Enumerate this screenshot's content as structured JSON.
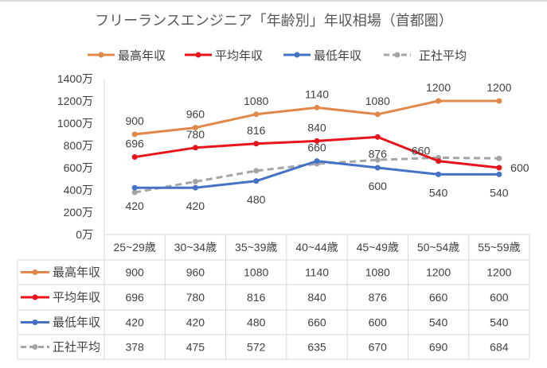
{
  "chart_data": {
    "type": "line",
    "title": "フリーランスエンジニア「年齢別」年収相場（首都圏）",
    "categories": [
      "25~29歳",
      "30~34歳",
      "35~39歳",
      "40~44歳",
      "45~49歳",
      "50~54歳",
      "55~59歳"
    ],
    "yticks": [
      "0万",
      "200万",
      "400万",
      "600万",
      "800万",
      "1000万",
      "1200万",
      "1400万"
    ],
    "ylim": [
      0,
      1400
    ],
    "grid": false,
    "legend": "top",
    "data_table": true,
    "series": [
      {
        "name": "最高年収",
        "color": "#e0884a",
        "dashed": false,
        "labels": true,
        "values": [
          900,
          960,
          1080,
          1140,
          1080,
          1200,
          1200
        ]
      },
      {
        "name": "平均年収",
        "color": "#e8141c",
        "dashed": false,
        "labels": true,
        "values": [
          696,
          780,
          816,
          840,
          876,
          660,
          600
        ]
      },
      {
        "name": "最低年収",
        "color": "#4472c4",
        "dashed": false,
        "labels": true,
        "values": [
          420,
          420,
          480,
          660,
          600,
          540,
          540
        ]
      },
      {
        "name": "正社平均",
        "color": "#a5a5a5",
        "dashed": true,
        "labels": false,
        "values": [
          378,
          475,
          572,
          635,
          670,
          690,
          684
        ]
      }
    ]
  }
}
